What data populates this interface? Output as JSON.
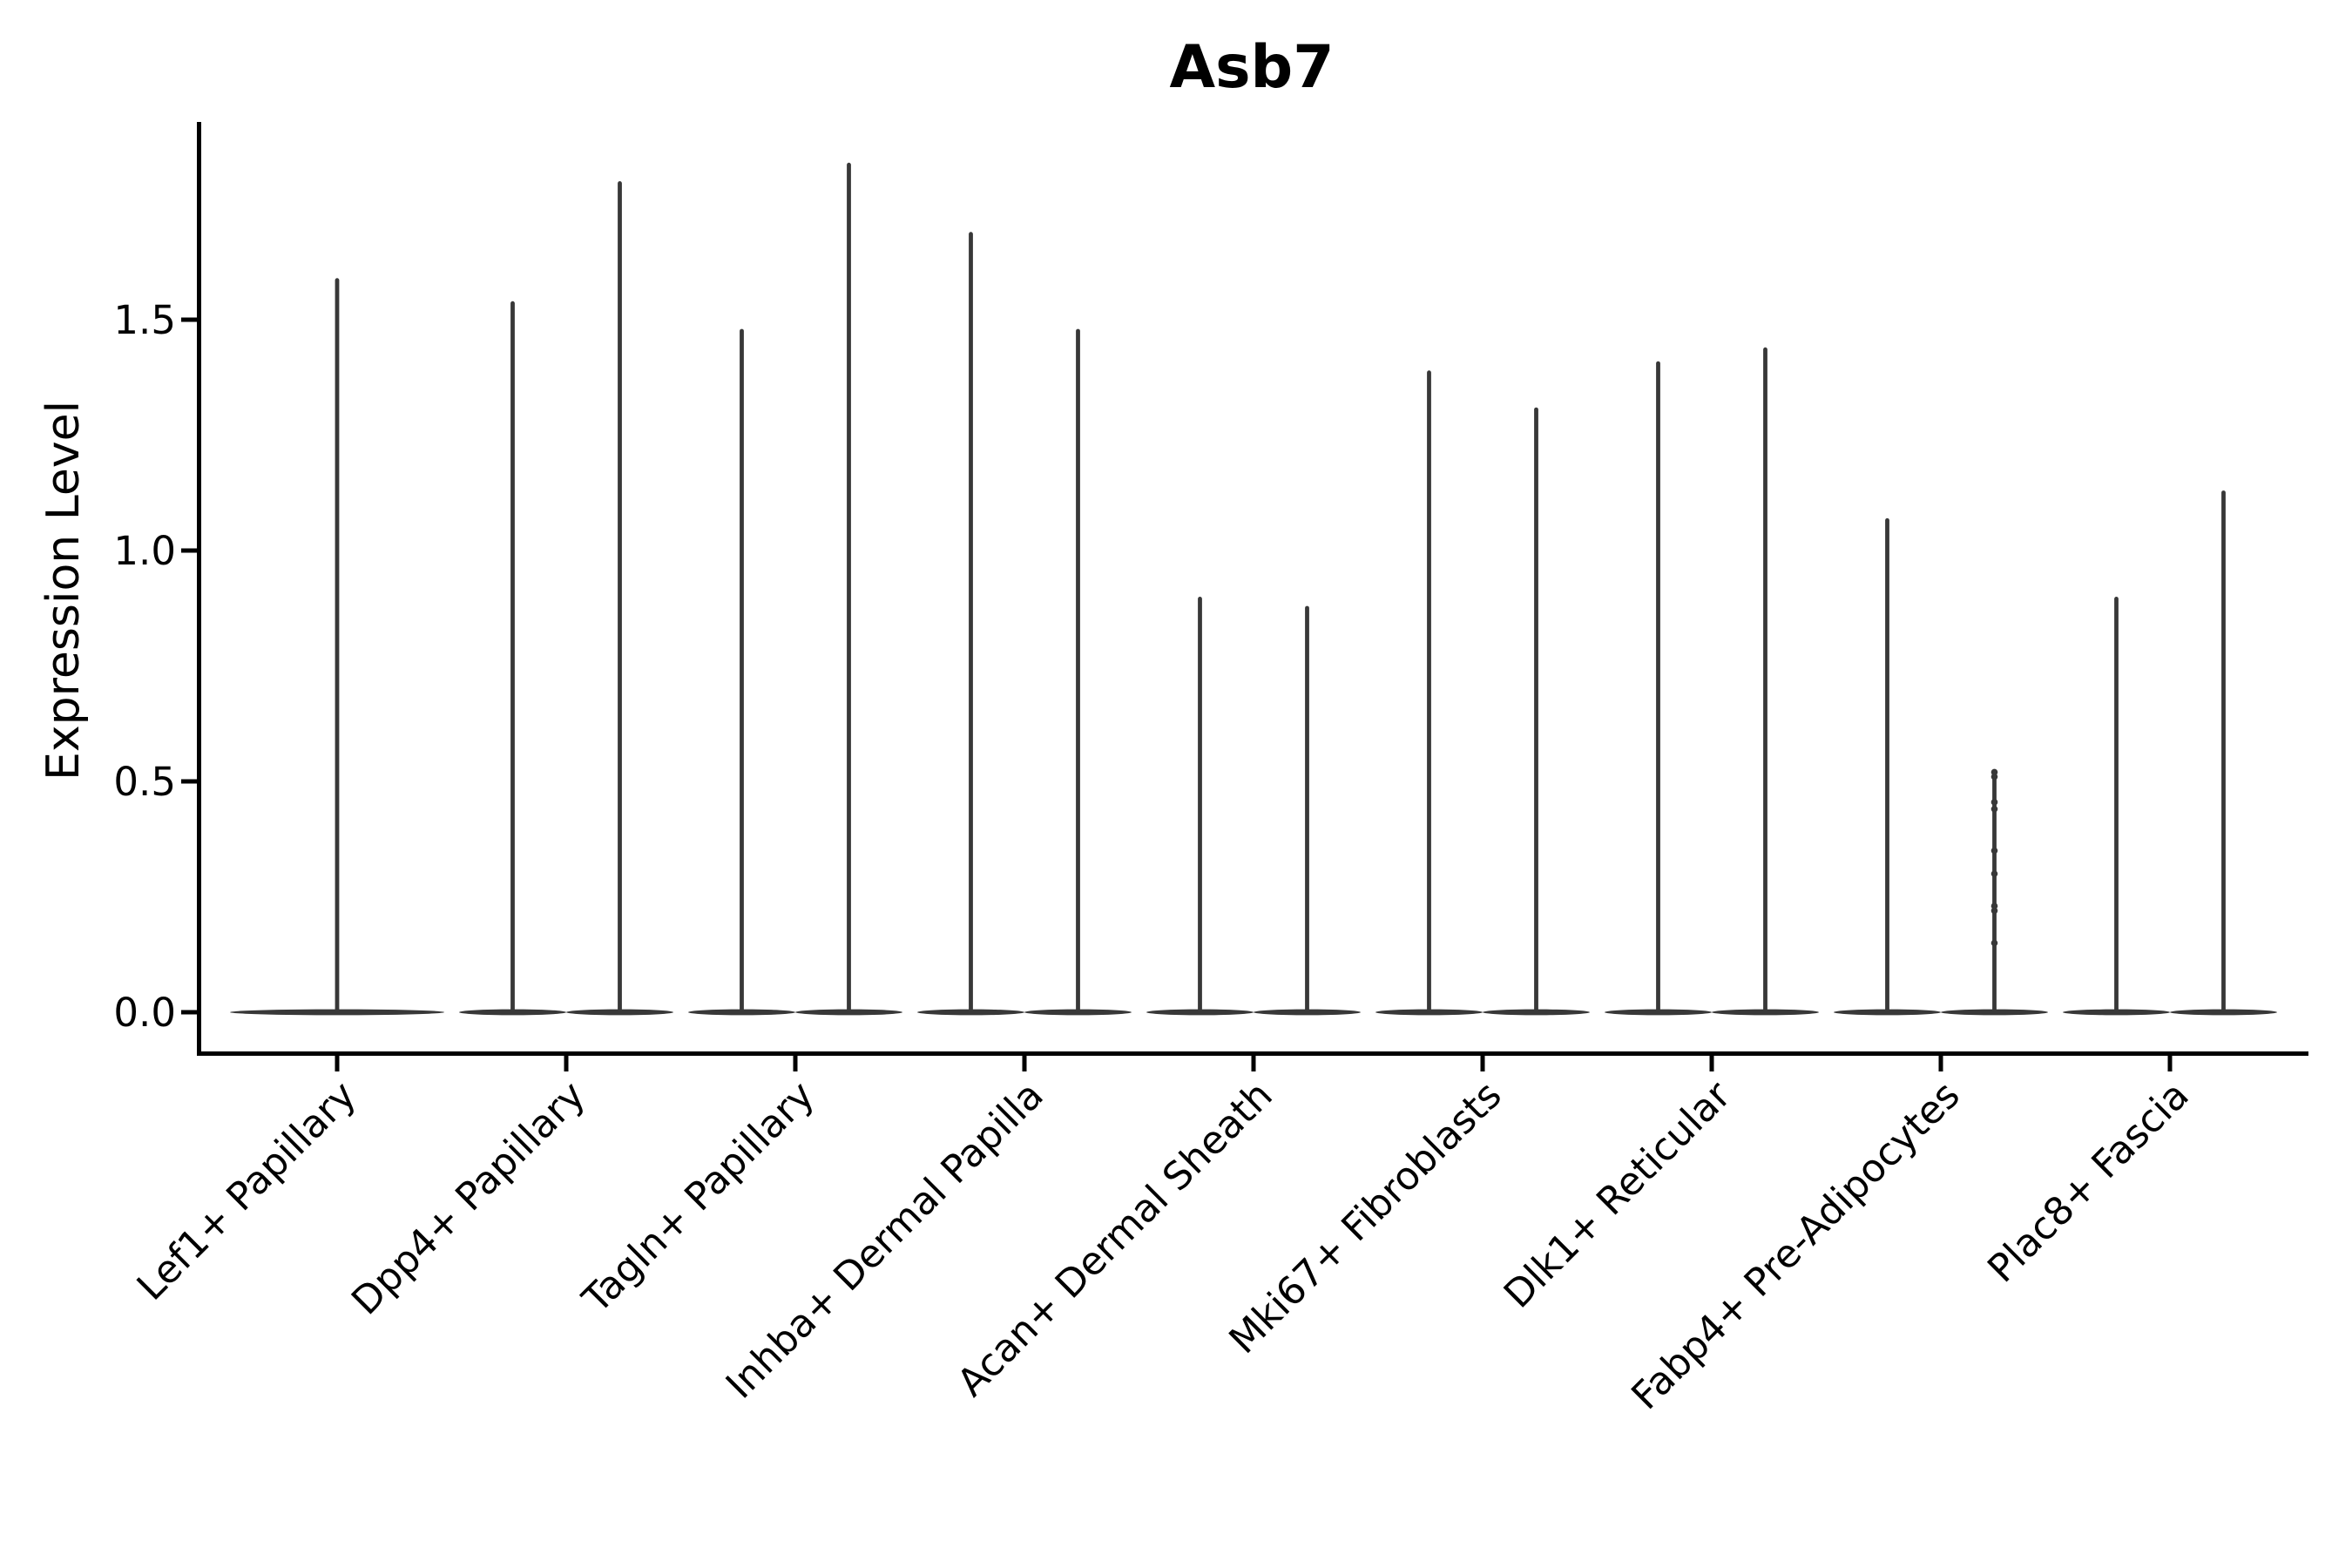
{
  "chart_data": {
    "type": "violin",
    "title": "Asb7",
    "ylabel": "Expression Level",
    "xlabel": "",
    "yticks": [
      0.0,
      0.5,
      1.0,
      1.5
    ],
    "ytick_labels": [
      "0.0",
      "0.5",
      "1.0",
      "1.5"
    ],
    "ylim": [
      -0.09,
      1.93
    ],
    "grid": false,
    "legend": false,
    "bulk_at_zero": true,
    "categories": [
      "Lef1+ Papillary",
      "Dpp4+ Papillary",
      "Tagln+ Papillary",
      "Inhba+ Dermal Papilla",
      "Acan+ Dermal Sheath",
      "Mki67+ Fibroblasts",
      "Dlk1+ Reticular",
      "Fabp4+ Pre-Adipocytes",
      "Plac8+ Fascia"
    ],
    "series": [
      {
        "category": "Lef1+ Papillary",
        "violins": [
          {
            "max": 1.59
          }
        ]
      },
      {
        "category": "Dpp4+ Papillary",
        "violins": [
          {
            "max": 1.54
          },
          {
            "max": 1.8
          }
        ]
      },
      {
        "category": "Tagln+ Papillary",
        "violins": [
          {
            "max": 1.48
          },
          {
            "max": 1.84
          }
        ]
      },
      {
        "category": "Inhba+ Dermal Papilla",
        "violins": [
          {
            "max": 1.69
          },
          {
            "max": 1.48
          }
        ]
      },
      {
        "category": "Acan+ Dermal Sheath",
        "violins": [
          {
            "max": 0.9
          },
          {
            "max": 0.88
          }
        ]
      },
      {
        "category": "Mki67+ Fibroblasts",
        "violins": [
          {
            "max": 1.39
          },
          {
            "max": 1.31
          }
        ]
      },
      {
        "category": "Dlk1+ Reticular",
        "violins": [
          {
            "max": 1.41
          },
          {
            "max": 1.44
          }
        ]
      },
      {
        "category": "Fabp4+ Pre-Adipocytes",
        "violins": [
          {
            "max": 1.07
          },
          {
            "max": 0.52,
            "points": [
              0.52,
              0.51,
              0.455,
              0.44,
              0.35,
              0.3,
              0.23,
              0.22,
              0.15
            ]
          }
        ]
      },
      {
        "category": "Plac8+ Fascia",
        "violins": [
          {
            "max": 0.9
          },
          {
            "max": 1.13
          }
        ]
      }
    ],
    "colors": {
      "violin_fill": "#383838",
      "axis": "#000000",
      "text": "#000000",
      "background": "#ffffff"
    }
  }
}
